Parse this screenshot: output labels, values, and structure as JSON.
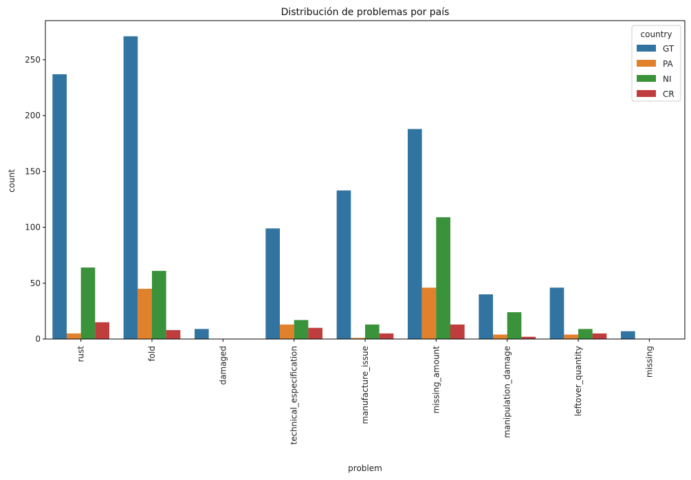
{
  "chart_data": {
    "type": "bar",
    "title": "Distribución de problemas por país",
    "xlabel": "problem",
    "ylabel": "count",
    "ylim": [
      0,
      285
    ],
    "yticks": [
      0,
      50,
      100,
      150,
      200,
      250
    ],
    "categories": [
      "rust",
      "fold",
      "damaged",
      "technical_especification",
      "manufacture_issue",
      "missing_amount",
      "manipulation_damage",
      "leftover_quantity",
      "missing"
    ],
    "legend": {
      "title": "country",
      "position": "top-right"
    },
    "grid": false,
    "series": [
      {
        "name": "GT",
        "color": "#3274a1",
        "values": [
          237,
          271,
          9,
          99,
          133,
          188,
          40,
          46,
          7
        ]
      },
      {
        "name": "PA",
        "color": "#e1812c",
        "values": [
          5,
          45,
          0,
          13,
          1,
          46,
          4,
          4,
          0
        ]
      },
      {
        "name": "NI",
        "color": "#3a923a",
        "values": [
          64,
          61,
          0,
          17,
          13,
          109,
          24,
          9,
          0
        ]
      },
      {
        "name": "CR",
        "color": "#c03d3e",
        "values": [
          15,
          8,
          0,
          10,
          5,
          13,
          2,
          5,
          0
        ]
      }
    ]
  }
}
